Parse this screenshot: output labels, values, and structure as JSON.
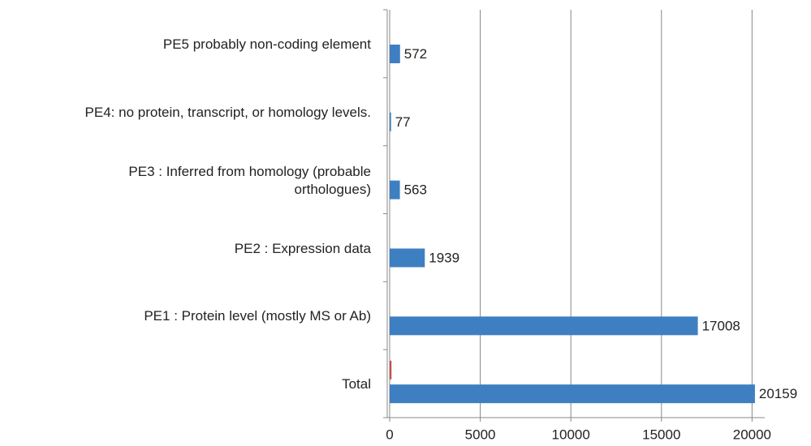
{
  "chart_data": {
    "type": "bar",
    "orientation": "horizontal",
    "categories": [
      "PE5 probably non-coding element",
      "PE4: no protein, transcript, or homology levels.",
      "PE3 : Inferred from homology (probable\northologues)",
      "PE2 : Expression data",
      "PE1 : Protein level (mostly MS or Ab)",
      "Total"
    ],
    "series": [
      {
        "color": "#c0504d",
        "values": [
          null,
          null,
          null,
          null,
          null,
          100
        ]
      },
      {
        "color": "#3d7fc1",
        "values": [
          572,
          77,
          563,
          1939,
          17008,
          20159
        ]
      }
    ],
    "xlim": [
      0,
      20700
    ],
    "xticks": [
      0,
      5000,
      10000,
      15000,
      20000
    ],
    "grid": true
  }
}
